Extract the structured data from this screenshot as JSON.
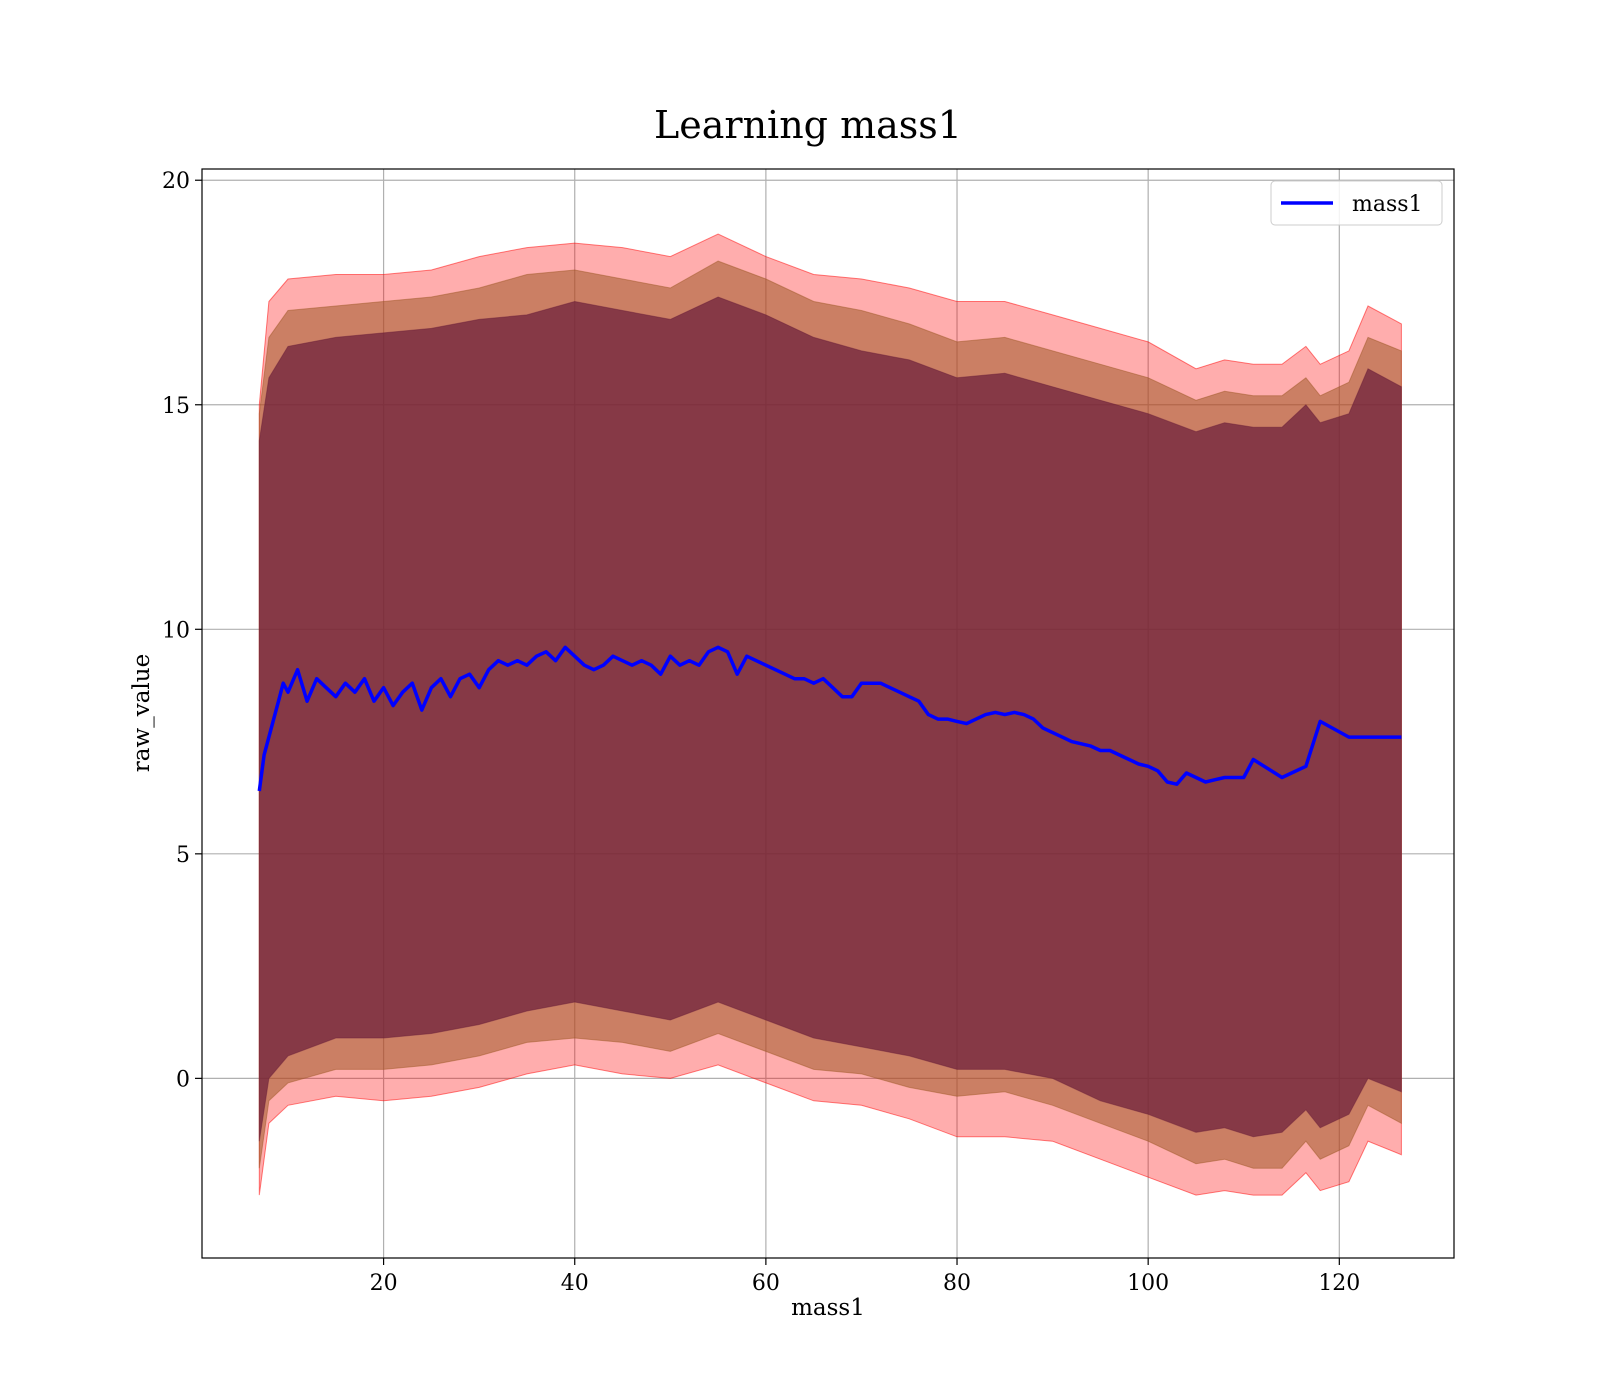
{
  "chart_data": {
    "type": "line",
    "title": "Learning mass1",
    "xlabel": "mass1",
    "ylabel": "raw_value",
    "xlim": [
      1,
      132
    ],
    "ylim": [
      -4,
      20.25
    ],
    "xticks": [
      20,
      40,
      60,
      80,
      100,
      120
    ],
    "yticks": [
      0,
      5,
      10,
      15,
      20
    ],
    "grid": true,
    "legend": {
      "placement": "top-right",
      "entries": [
        "mass1"
      ]
    },
    "colors": {
      "line": "#0000ff",
      "band_outer": "#ff0000",
      "band_middle": "#a05a28",
      "band_inner": "#6b1f3a",
      "grid": "#b0b0b0"
    },
    "series": [
      {
        "name": "mass1",
        "x": [
          7,
          7.5,
          8,
          8.5,
          9,
          9.5,
          10,
          11,
          12,
          13,
          14,
          15,
          16,
          17,
          18,
          19,
          20,
          21,
          22,
          23,
          24,
          25,
          26,
          27,
          28,
          29,
          30,
          31,
          32,
          33,
          34,
          35,
          36,
          37,
          38,
          39,
          40,
          41,
          42,
          43,
          44,
          45,
          46,
          47,
          48,
          49,
          50,
          51,
          52,
          53,
          54,
          55,
          56,
          57,
          58,
          59,
          60,
          61,
          62,
          63,
          64,
          65,
          66,
          67,
          68,
          69,
          70,
          71,
          72,
          73,
          74,
          75,
          76,
          77,
          78,
          79,
          80,
          81,
          82,
          83,
          84,
          85,
          86,
          87,
          88,
          89,
          90,
          91,
          92,
          93,
          94,
          95,
          96,
          97,
          98,
          99,
          100,
          101,
          102,
          103,
          104,
          105,
          106,
          107,
          108,
          110,
          111,
          114,
          116.5,
          118,
          121,
          123,
          126.5
        ],
        "y": [
          6.4,
          7.2,
          7.6,
          8.0,
          8.4,
          8.8,
          8.6,
          9.1,
          8.4,
          8.9,
          8.7,
          8.5,
          8.8,
          8.6,
          8.9,
          8.4,
          8.7,
          8.3,
          8.6,
          8.8,
          8.2,
          8.7,
          8.9,
          8.5,
          8.9,
          9.0,
          8.7,
          9.1,
          9.3,
          9.2,
          9.3,
          9.2,
          9.4,
          9.5,
          9.3,
          9.6,
          9.4,
          9.2,
          9.1,
          9.2,
          9.4,
          9.3,
          9.2,
          9.3,
          9.2,
          9.0,
          9.4,
          9.2,
          9.3,
          9.2,
          9.5,
          9.6,
          9.5,
          9.0,
          9.4,
          9.3,
          9.2,
          9.1,
          9.0,
          8.9,
          8.9,
          8.8,
          8.9,
          8.7,
          8.5,
          8.5,
          8.8,
          8.8,
          8.8,
          8.7,
          8.6,
          8.5,
          8.4,
          8.1,
          8.0,
          8.0,
          7.95,
          7.9,
          8.0,
          8.1,
          8.15,
          8.1,
          8.15,
          8.1,
          8.0,
          7.8,
          7.7,
          7.6,
          7.5,
          7.45,
          7.4,
          7.3,
          7.3,
          7.2,
          7.1,
          7.0,
          6.95,
          6.85,
          6.6,
          6.55,
          6.8,
          6.7,
          6.6,
          6.65,
          6.7,
          6.7,
          7.1,
          6.7,
          6.95,
          7.95,
          7.6,
          7.6,
          7.6
        ]
      }
    ],
    "bands": [
      {
        "x": [
          7,
          8,
          10,
          15,
          20,
          25,
          30,
          35,
          40,
          45,
          50,
          55,
          60,
          65,
          70,
          75,
          80,
          85,
          90,
          95,
          100,
          105,
          108,
          111,
          114,
          116.5,
          118,
          121,
          123,
          126.5
        ],
        "upper": [
          15.0,
          17.3,
          17.8,
          17.9,
          17.9,
          18.0,
          18.3,
          18.5,
          18.6,
          18.5,
          18.3,
          18.8,
          18.3,
          17.9,
          17.8,
          17.6,
          17.3,
          17.3,
          17.0,
          16.7,
          16.4,
          15.8,
          16.0,
          15.9,
          15.9,
          16.3,
          15.9,
          16.2,
          17.2,
          16.8
        ],
        "lower": [
          -2.6,
          -1.0,
          -0.6,
          -0.4,
          -0.5,
          -0.4,
          -0.2,
          0.1,
          0.3,
          0.1,
          0.0,
          0.3,
          -0.1,
          -0.5,
          -0.6,
          -0.9,
          -1.3,
          -1.3,
          -1.4,
          -1.8,
          -2.2,
          -2.6,
          -2.5,
          -2.6,
          -2.6,
          -2.1,
          -2.5,
          -2.3,
          -1.4,
          -1.7
        ]
      },
      {
        "x": [
          7,
          8,
          10,
          15,
          20,
          25,
          30,
          35,
          40,
          45,
          50,
          55,
          60,
          65,
          70,
          75,
          80,
          85,
          90,
          95,
          100,
          105,
          108,
          111,
          114,
          116.5,
          118,
          121,
          123,
          126.5
        ],
        "upper": [
          14.8,
          16.5,
          17.1,
          17.2,
          17.3,
          17.4,
          17.6,
          17.9,
          18.0,
          17.8,
          17.6,
          18.2,
          17.8,
          17.3,
          17.1,
          16.8,
          16.4,
          16.5,
          16.2,
          15.9,
          15.6,
          15.1,
          15.3,
          15.2,
          15.2,
          15.6,
          15.2,
          15.5,
          16.5,
          16.2
        ],
        "lower": [
          -2.0,
          -0.5,
          -0.1,
          0.2,
          0.2,
          0.3,
          0.5,
          0.8,
          0.9,
          0.8,
          0.6,
          1.0,
          0.6,
          0.2,
          0.1,
          -0.2,
          -0.4,
          -0.3,
          -0.6,
          -1.0,
          -1.4,
          -1.9,
          -1.8,
          -2.0,
          -2.0,
          -1.4,
          -1.8,
          -1.5,
          -0.6,
          -1.0
        ]
      },
      {
        "x": [
          7,
          8,
          10,
          15,
          20,
          25,
          30,
          35,
          40,
          45,
          50,
          55,
          60,
          65,
          70,
          75,
          80,
          85,
          90,
          95,
          100,
          105,
          108,
          111,
          114,
          116.5,
          118,
          121,
          123,
          126.5
        ],
        "upper": [
          14.2,
          15.6,
          16.3,
          16.5,
          16.6,
          16.7,
          16.9,
          17.0,
          17.3,
          17.1,
          16.9,
          17.4,
          17.0,
          16.5,
          16.2,
          16.0,
          15.6,
          15.7,
          15.4,
          15.1,
          14.8,
          14.4,
          14.6,
          14.5,
          14.5,
          15.0,
          14.6,
          14.8,
          15.8,
          15.4
        ],
        "lower": [
          -1.4,
          0.0,
          0.5,
          0.9,
          0.9,
          1.0,
          1.2,
          1.5,
          1.7,
          1.5,
          1.3,
          1.7,
          1.3,
          0.9,
          0.7,
          0.5,
          0.2,
          0.2,
          0.0,
          -0.5,
          -0.8,
          -1.2,
          -1.1,
          -1.3,
          -1.2,
          -0.7,
          -1.1,
          -0.8,
          0.0,
          -0.3
        ]
      }
    ]
  }
}
